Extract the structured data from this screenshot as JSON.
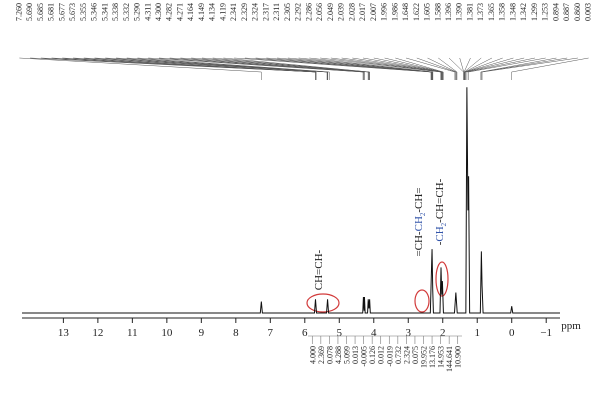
{
  "chart_data": {
    "type": "line",
    "x_label": "ppm",
    "xlim": [
      14.2,
      -1.4
    ],
    "xticks": [
      13,
      12,
      11,
      10,
      9,
      8,
      7,
      6,
      5,
      4,
      3,
      2,
      1,
      0,
      {
        "value": -1,
        "label": "−1"
      }
    ],
    "ylim": [
      0,
      100
    ],
    "series": [
      {
        "color": "#111111",
        "x": [
          14.2,
          7.29,
          7.26,
          7.23,
          5.72,
          5.69,
          5.66,
          5.37,
          5.34,
          5.31,
          4.32,
          4.3,
          4.28,
          4.27,
          4.25,
          4.18,
          4.16,
          4.14,
          4.12,
          4.1,
          2.36,
          2.33,
          2.31,
          2.29,
          2.27,
          2.08,
          2.05,
          2.03,
          2.01,
          1.98,
          1.66,
          1.62,
          1.58,
          1.33,
          1.3,
          1.27,
          1.25,
          1.22,
          0.91,
          0.88,
          0.86,
          0.83,
          0.03,
          0.0,
          -0.03,
          -1.4
        ],
        "values": [
          0,
          0,
          5,
          0,
          0,
          6,
          0,
          0,
          6,
          0,
          0,
          7,
          1,
          7,
          0,
          0,
          6,
          2,
          6,
          0,
          0,
          17,
          28,
          10,
          0,
          0,
          20,
          8,
          14,
          0,
          0,
          9,
          0,
          0,
          99,
          45,
          60,
          0,
          0,
          27,
          12,
          0,
          0,
          3,
          0,
          0
        ]
      }
    ],
    "peak_labels": [
      "7.260",
      "5.690",
      "5.685",
      "5.681",
      "5.677",
      "5.673",
      "5.355",
      "5.346",
      "5.341",
      "5.338",
      "5.332",
      "5.290",
      "4.311",
      "4.300",
      "4.282",
      "4.271",
      "4.164",
      "4.149",
      "4.134",
      "4.119",
      "2.341",
      "2.329",
      "2.324",
      "2.317",
      "2.311",
      "2.305",
      "2.292",
      "2.286",
      "2.056",
      "2.049",
      "2.039",
      "2.028",
      "2.017",
      "2.007",
      "1.996",
      "1.986",
      "1.648",
      "1.622",
      "1.605",
      "1.588",
      "1.396",
      "1.390",
      "1.381",
      "1.373",
      "1.365",
      "1.358",
      "1.348",
      "1.342",
      "1.299",
      "1.253",
      "0.894",
      "0.887",
      "0.860",
      "0.003"
    ],
    "integrals": [
      "4.000",
      "2.369",
      "0.078",
      "4.288",
      "5.099",
      "0.013",
      "-0.005",
      "0.126",
      "0.012",
      "-0.019",
      "0.732",
      "2.324",
      "0.075",
      "19.952",
      "13.176",
      "14.953",
      "144.641",
      "10.900"
    ],
    "annotations": [
      [
        "CH=CH-"
      ],
      [
        "=CH-",
        "CH",
        "2",
        "-CH="
      ],
      [
        "-",
        "CH",
        "2",
        "-CH=CH-"
      ]
    ]
  }
}
